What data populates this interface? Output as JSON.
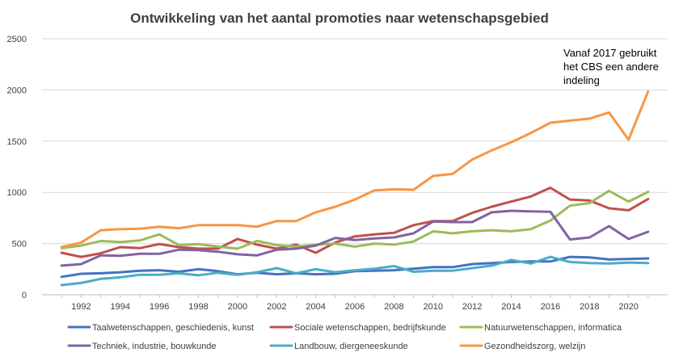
{
  "chart_data": {
    "type": "line",
    "title": "Ontwikkeling van het aantal promoties naar wetenschapsgebied",
    "annotation": [
      "Vanaf 2017 gebruikt",
      "het CBS een andere",
      "indeling"
    ],
    "x": [
      1991,
      1992,
      1993,
      1994,
      1995,
      1996,
      1997,
      1998,
      1999,
      2000,
      2001,
      2002,
      2003,
      2004,
      2005,
      2006,
      2007,
      2008,
      2009,
      2010,
      2011,
      2012,
      2013,
      2014,
      2015,
      2016,
      2017,
      2018,
      2019,
      2020,
      2021
    ],
    "x_tick_labels": [
      "1992",
      "1994",
      "1996",
      "1998",
      "2000",
      "2002",
      "2004",
      "2006",
      "2008",
      "2010",
      "2012",
      "2014",
      "2016",
      "2018",
      "2020"
    ],
    "y_tick_labels": [
      "0",
      "500",
      "1000",
      "1500",
      "2000",
      "2500"
    ],
    "ylim": [
      0,
      2500
    ],
    "xlim": [
      1990,
      2022
    ],
    "grid": true,
    "legend_position": "bottom",
    "series": [
      {
        "name": "Taalwetenschappen, geschiedenis, kunst",
        "color": "#4472c4",
        "values": [
          175,
          205,
          210,
          220,
          235,
          240,
          225,
          250,
          230,
          200,
          215,
          200,
          210,
          200,
          205,
          230,
          235,
          240,
          255,
          270,
          270,
          300,
          310,
          320,
          325,
          325,
          370,
          365,
          345,
          350,
          355
        ]
      },
      {
        "name": "Sociale wetenschappen, bedrijfskunde",
        "color": "#c0504d",
        "values": [
          410,
          370,
          405,
          465,
          455,
          495,
          465,
          450,
          450,
          545,
          490,
          450,
          490,
          410,
          510,
          570,
          590,
          605,
          680,
          720,
          720,
          800,
          860,
          910,
          960,
          1045,
          930,
          920,
          845,
          825,
          935
        ]
      },
      {
        "name": "Natuurwetenschappen, informatica",
        "color": "#9bbb59",
        "values": [
          455,
          480,
          525,
          515,
          530,
          590,
          485,
          495,
          470,
          450,
          525,
          485,
          470,
          490,
          500,
          470,
          500,
          490,
          520,
          620,
          600,
          620,
          630,
          620,
          640,
          725,
          870,
          895,
          1015,
          910,
          1005
        ]
      },
      {
        "name": "Techniek, industrie, bouwkunde",
        "color": "#8064a2",
        "values": [
          285,
          300,
          385,
          380,
          400,
          400,
          440,
          435,
          420,
          395,
          385,
          440,
          450,
          480,
          555,
          535,
          550,
          560,
          600,
          715,
          710,
          710,
          805,
          820,
          815,
          810,
          540,
          560,
          670,
          545,
          615
        ]
      },
      {
        "name": "Landbouw, diergeneeskunde",
        "color": "#4bacc6",
        "values": [
          95,
          115,
          155,
          170,
          195,
          195,
          210,
          190,
          215,
          195,
          220,
          260,
          210,
          250,
          220,
          240,
          255,
          280,
          225,
          235,
          235,
          260,
          285,
          340,
          305,
          370,
          320,
          310,
          305,
          315,
          310
        ]
      },
      {
        "name": "Gezondheidszorg, welzijn",
        "color": "#f79646",
        "values": [
          465,
          510,
          630,
          640,
          645,
          665,
          650,
          680,
          680,
          680,
          665,
          720,
          720,
          805,
          860,
          930,
          1020,
          1030,
          1025,
          1160,
          1180,
          1320,
          1410,
          1490,
          1580,
          1680,
          1700,
          1720,
          1780,
          1515,
          1985
        ]
      }
    ]
  }
}
